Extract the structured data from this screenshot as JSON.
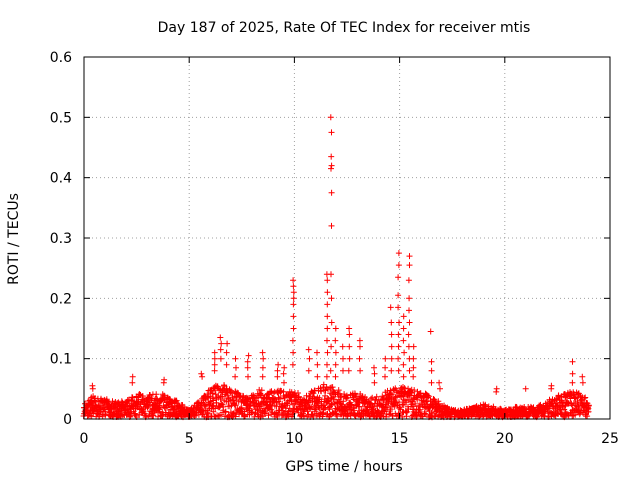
{
  "chart_data": {
    "type": "scatter",
    "title": "Day 187 of 2025, Rate Of TEC Index for receiver mtis",
    "xlabel": "GPS time / hours",
    "ylabel": "ROTI / TECUs",
    "xlim": [
      0,
      25
    ],
    "ylim": [
      0,
      0.6
    ],
    "xticks": [
      0,
      5,
      10,
      15,
      20,
      25
    ],
    "yticks": [
      0,
      0.1,
      0.2,
      0.3,
      0.4,
      0.5,
      0.6
    ],
    "xtick_labels": [
      "0",
      "5",
      "10",
      "15",
      "20",
      "25"
    ],
    "ytick_labels": [
      "0",
      "0.1",
      "0.2",
      "0.3",
      "0.4",
      "0.5",
      "0.6"
    ],
    "grid": true,
    "marker": "plus",
    "color": "#ff0000",
    "baseline_envelope": [
      [
        0.0,
        0.025
      ],
      [
        0.5,
        0.04
      ],
      [
        1.0,
        0.035
      ],
      [
        1.5,
        0.03
      ],
      [
        2.0,
        0.03
      ],
      [
        2.5,
        0.045
      ],
      [
        3.0,
        0.04
      ],
      [
        3.5,
        0.045
      ],
      [
        4.0,
        0.04
      ],
      [
        4.5,
        0.03
      ],
      [
        5.0,
        0.015
      ],
      [
        5.5,
        0.03
      ],
      [
        6.0,
        0.05
      ],
      [
        6.5,
        0.06
      ],
      [
        7.0,
        0.05
      ],
      [
        7.5,
        0.04
      ],
      [
        8.0,
        0.045
      ],
      [
        8.5,
        0.05
      ],
      [
        9.0,
        0.045
      ],
      [
        9.5,
        0.05
      ],
      [
        10.0,
        0.045
      ],
      [
        10.5,
        0.04
      ],
      [
        11.0,
        0.05
      ],
      [
        11.5,
        0.06
      ],
      [
        12.0,
        0.05
      ],
      [
        12.5,
        0.04
      ],
      [
        13.0,
        0.045
      ],
      [
        13.5,
        0.035
      ],
      [
        14.0,
        0.04
      ],
      [
        14.5,
        0.05
      ],
      [
        15.0,
        0.055
      ],
      [
        15.5,
        0.05
      ],
      [
        16.0,
        0.045
      ],
      [
        16.5,
        0.04
      ],
      [
        17.0,
        0.025
      ],
      [
        17.5,
        0.015
      ],
      [
        18.0,
        0.015
      ],
      [
        18.5,
        0.02
      ],
      [
        19.0,
        0.025
      ],
      [
        19.5,
        0.02
      ],
      [
        20.0,
        0.015
      ],
      [
        20.5,
        0.02
      ],
      [
        21.0,
        0.02
      ],
      [
        21.5,
        0.02
      ],
      [
        22.0,
        0.03
      ],
      [
        22.5,
        0.04
      ],
      [
        23.0,
        0.045
      ],
      [
        23.5,
        0.045
      ],
      [
        24.0,
        0.03
      ]
    ],
    "spikes": [
      {
        "x": 0.4,
        "y": [
          0.05,
          0.055
        ]
      },
      {
        "x": 2.3,
        "y": [
          0.06,
          0.07
        ]
      },
      {
        "x": 3.8,
        "y": [
          0.06,
          0.065
        ]
      },
      {
        "x": 5.6,
        "y": [
          0.07,
          0.075
        ]
      },
      {
        "x": 6.2,
        "y": [
          0.08,
          0.09,
          0.1,
          0.11
        ]
      },
      {
        "x": 6.5,
        "y": [
          0.1,
          0.115,
          0.125,
          0.135
        ]
      },
      {
        "x": 6.8,
        "y": [
          0.09,
          0.11,
          0.125
        ]
      },
      {
        "x": 7.2,
        "y": [
          0.07,
          0.085,
          0.1
        ]
      },
      {
        "x": 7.8,
        "y": [
          0.07,
          0.085,
          0.095,
          0.105
        ]
      },
      {
        "x": 8.5,
        "y": [
          0.07,
          0.085,
          0.1,
          0.11
        ]
      },
      {
        "x": 9.2,
        "y": [
          0.07,
          0.08,
          0.09
        ]
      },
      {
        "x": 9.5,
        "y": [
          0.06,
          0.075,
          0.085
        ]
      },
      {
        "x": 9.95,
        "y": [
          0.09,
          0.11,
          0.13,
          0.15,
          0.17,
          0.19,
          0.2,
          0.21,
          0.22,
          0.23
        ]
      },
      {
        "x": 10.7,
        "y": [
          0.08,
          0.1,
          0.115
        ]
      },
      {
        "x": 11.1,
        "y": [
          0.07,
          0.09,
          0.11
        ]
      },
      {
        "x": 11.55,
        "y": [
          0.07,
          0.09,
          0.11,
          0.13,
          0.15,
          0.17,
          0.19,
          0.21,
          0.23,
          0.24
        ]
      },
      {
        "x": 11.75,
        "y": [
          0.08,
          0.12,
          0.16,
          0.2,
          0.24,
          0.32,
          0.375,
          0.415,
          0.42,
          0.435,
          0.475,
          0.5
        ]
      },
      {
        "x": 11.95,
        "y": [
          0.07,
          0.09,
          0.11,
          0.13,
          0.15
        ]
      },
      {
        "x": 12.3,
        "y": [
          0.08,
          0.1,
          0.12
        ]
      },
      {
        "x": 12.6,
        "y": [
          0.08,
          0.1,
          0.12,
          0.14,
          0.15
        ]
      },
      {
        "x": 13.1,
        "y": [
          0.08,
          0.1,
          0.12,
          0.13
        ]
      },
      {
        "x": 13.8,
        "y": [
          0.06,
          0.075,
          0.085
        ]
      },
      {
        "x": 14.3,
        "y": [
          0.07,
          0.085,
          0.1
        ]
      },
      {
        "x": 14.6,
        "y": [
          0.08,
          0.1,
          0.12,
          0.14,
          0.16,
          0.185
        ]
      },
      {
        "x": 14.95,
        "y": [
          0.08,
          0.1,
          0.12,
          0.14,
          0.16,
          0.185,
          0.205,
          0.235,
          0.255,
          0.275
        ]
      },
      {
        "x": 15.2,
        "y": [
          0.07,
          0.09,
          0.11,
          0.13,
          0.15,
          0.17
        ]
      },
      {
        "x": 15.45,
        "y": [
          0.08,
          0.1,
          0.12,
          0.14,
          0.16,
          0.18,
          0.2,
          0.23,
          0.255,
          0.27
        ]
      },
      {
        "x": 15.65,
        "y": [
          0.07,
          0.085,
          0.1,
          0.12
        ]
      },
      {
        "x": 16.5,
        "y": [
          0.06,
          0.08,
          0.095,
          0.145
        ]
      },
      {
        "x": 16.9,
        "y": [
          0.05,
          0.06
        ]
      },
      {
        "x": 19.6,
        "y": [
          0.045,
          0.05
        ]
      },
      {
        "x": 21.0,
        "y": [
          0.05
        ]
      },
      {
        "x": 22.2,
        "y": [
          0.05,
          0.055
        ]
      },
      {
        "x": 23.2,
        "y": [
          0.06,
          0.075,
          0.095
        ]
      },
      {
        "x": 23.7,
        "y": [
          0.06,
          0.07
        ]
      }
    ]
  }
}
